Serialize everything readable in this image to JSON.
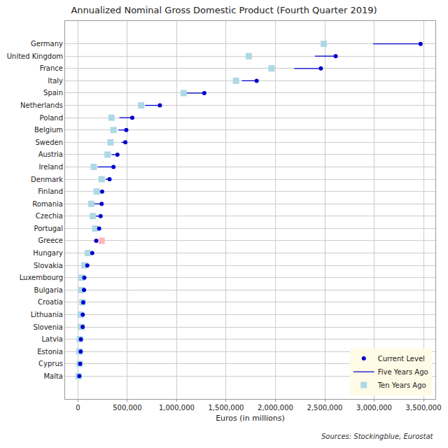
{
  "chart_data": {
    "type": "dot",
    "title": "Annualized Nominal Gross Domestic Product (Fourth Quarter 2019)",
    "x_label": "Euros (in millions)",
    "annotations": [
      "Sources: Stockingblue, Eurostat"
    ],
    "orientation": "horizontal",
    "categories": [
      "Germany",
      "United Kingdom",
      "France",
      "Italy",
      "Spain",
      "Netherlands",
      "Poland",
      "Belgium",
      "Sweden",
      "Austria",
      "Ireland",
      "Denmark",
      "Finland",
      "Romania",
      "Czechia",
      "Portugal",
      "Greece",
      "Hungary",
      "Slovakia",
      "Luxembourg",
      "Bulgaria",
      "Croatia",
      "Lithuania",
      "Slovenia",
      "Latvia",
      "Estonia",
      "Cyprus",
      "Malta"
    ],
    "series": [
      {
        "name": "Current Level",
        "type": "point",
        "marker": "circle",
        "color": "#0000cd",
        "values": [
          3470000,
          2610000,
          2460000,
          1810000,
          1280000,
          830000,
          550000,
          490000,
          480000,
          400000,
          360000,
          320000,
          245000,
          240000,
          230000,
          215000,
          185000,
          145000,
          95000,
          65000,
          62000,
          54000,
          49000,
          48000,
          30000,
          28000,
          22000,
          14000
        ]
      },
      {
        "name": "Five Years Ago",
        "type": "range",
        "line_style": "solid",
        "color": "#0000cd",
        "values": [
          2990000,
          2400000,
          2190000,
          1660000,
          1090000,
          680000,
          420000,
          410000,
          440000,
          340000,
          200000,
          280000,
          210000,
          155000,
          165000,
          185000,
          180000,
          110000,
          78000,
          50000,
          43000,
          44000,
          37000,
          38000,
          24000,
          20000,
          18000,
          9000
        ]
      },
      {
        "name": "Ten Years Ago",
        "type": "point",
        "marker": "square",
        "colors": [
          "#add8e6",
          "#add8e6",
          "#add8e6",
          "#add8e6",
          "#add8e6",
          "#add8e6",
          "#add8e6",
          "#add8e6",
          "#add8e6",
          "#add8e6",
          "#add8e6",
          "#add8e6",
          "#add8e6",
          "#add8e6",
          "#add8e6",
          "#add8e6",
          "#ffb6c1",
          "#add8e6",
          "#add8e6",
          "#add8e6",
          "#add8e6",
          "#add8e6",
          "#add8e6",
          "#add8e6",
          "#add8e6",
          "#add8e6",
          "#add8e6",
          "#add8e6"
        ],
        "values": [
          2490000,
          1730000,
          1960000,
          1600000,
          1070000,
          640000,
          340000,
          360000,
          330000,
          300000,
          160000,
          240000,
          190000,
          135000,
          150000,
          175000,
          240000,
          100000,
          65000,
          38000,
          36000,
          45000,
          27000,
          36000,
          19000,
          14000,
          18000,
          6000
        ]
      }
    ],
    "xlim": [
      -130000,
      3620000
    ],
    "xticks": [
      0,
      {
        "value": 500000,
        "label": "500,000"
      },
      {
        "value": 1000000,
        "label": "1,000,000"
      },
      {
        "value": 1500000,
        "label": "1,500,000"
      },
      {
        "value": 2000000,
        "label": "2,000,000"
      },
      {
        "value": 2500000,
        "label": "2,500,000"
      },
      {
        "value": 3000000,
        "label": "3,000,000"
      },
      {
        "value": 3500000,
        "label": "3,500,000"
      }
    ],
    "grid": true,
    "legend": "bottom right"
  }
}
